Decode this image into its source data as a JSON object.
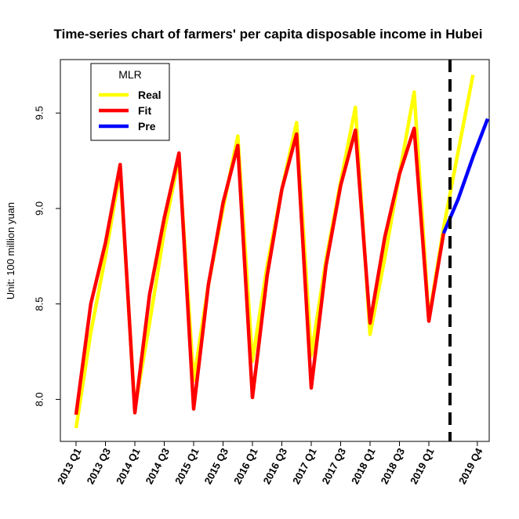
{
  "chart_data": {
    "type": "line",
    "title": "Time-series chart of farmers' per capita disposable income in Hubei",
    "ylabel": "Unit: 100 million yuan",
    "xlabel": "",
    "ylim": [
      7.78,
      9.78
    ],
    "yticks": [
      "8.0",
      "8.5",
      "9.0",
      "9.5"
    ],
    "ytick_values": [
      8.0,
      8.5,
      9.0,
      9.5
    ],
    "x_tick_labels": [
      "2013 Q1",
      "2013 Q3",
      "2014 Q1",
      "2014 Q3",
      "2015 Q1",
      "2015 Q3",
      "2016 Q1",
      "2016 Q3",
      "2017 Q1",
      "2017 Q3",
      "2018 Q1",
      "2018 Q3",
      "2019 Q1",
      "2019 Q4"
    ],
    "categories": [
      "2013 Q1",
      "2013 Q2",
      "2013 Q3",
      "2013 Q4",
      "2014 Q1",
      "2014 Q2",
      "2014 Q3",
      "2014 Q4",
      "2015 Q1",
      "2015 Q2",
      "2015 Q3",
      "2015 Q4",
      "2016 Q1",
      "2016 Q2",
      "2016 Q3",
      "2016 Q4",
      "2017 Q1",
      "2017 Q2",
      "2017 Q3",
      "2017 Q4",
      "2018 Q1",
      "2018 Q2",
      "2018 Q3",
      "2018 Q4",
      "2019 Q1",
      "2019 Q2",
      "2019 Q3",
      "2019 Q4"
    ],
    "legend": {
      "title": "MLR",
      "position": "top-left"
    },
    "forecast_start": "2019 Q2",
    "grid": false,
    "series": [
      {
        "name": "Real",
        "color": "#FFFF00",
        "x": [
          "2013 Q1",
          "2013 Q2",
          "2013 Q3",
          "2013 Q4",
          "2014 Q1",
          "2014 Q2",
          "2014 Q3",
          "2014 Q4",
          "2015 Q1",
          "2015 Q2",
          "2015 Q3",
          "2015 Q4",
          "2016 Q1",
          "2016 Q2",
          "2016 Q3",
          "2016 Q4",
          "2017 Q1",
          "2017 Q2",
          "2017 Q3",
          "2017 Q4",
          "2018 Q1",
          "2018 Q2",
          "2018 Q3",
          "2018 Q4",
          "2019 Q1",
          "2019 Q2",
          "2019 Q3",
          "2019 Q4"
        ],
        "values": [
          7.85,
          8.35,
          8.75,
          9.2,
          7.95,
          8.4,
          8.88,
          9.27,
          8.1,
          8.6,
          9.0,
          9.38,
          8.2,
          8.7,
          9.1,
          9.45,
          8.23,
          8.73,
          9.14,
          9.53,
          8.34,
          8.74,
          9.18,
          9.61,
          8.42,
          8.9,
          9.3,
          9.7
        ]
      },
      {
        "name": "Fit",
        "color": "#FF0000",
        "x": [
          "2013 Q1",
          "2013 Q2",
          "2013 Q3",
          "2013 Q4",
          "2014 Q1",
          "2014 Q2",
          "2014 Q3",
          "2014 Q4",
          "2015 Q1",
          "2015 Q2",
          "2015 Q3",
          "2015 Q4",
          "2016 Q1",
          "2016 Q2",
          "2016 Q3",
          "2016 Q4",
          "2017 Q1",
          "2017 Q2",
          "2017 Q3",
          "2017 Q4",
          "2018 Q1",
          "2018 Q2",
          "2018 Q3",
          "2018 Q4",
          "2019 Q1",
          "2019 Q2"
        ],
        "values": [
          7.92,
          8.5,
          8.82,
          9.23,
          7.93,
          8.55,
          8.95,
          9.29,
          7.95,
          8.6,
          9.03,
          9.33,
          8.01,
          8.65,
          9.1,
          9.39,
          8.06,
          8.7,
          9.12,
          9.41,
          8.4,
          8.85,
          9.18,
          9.42,
          8.41,
          8.87
        ]
      },
      {
        "name": "Pre",
        "color": "#0000FF",
        "x": [
          "2019 Q2",
          "2019 Q3",
          "2019 Q4",
          "2019 Q4+"
        ],
        "values": [
          8.87,
          9.05,
          9.27,
          9.47
        ]
      }
    ]
  }
}
